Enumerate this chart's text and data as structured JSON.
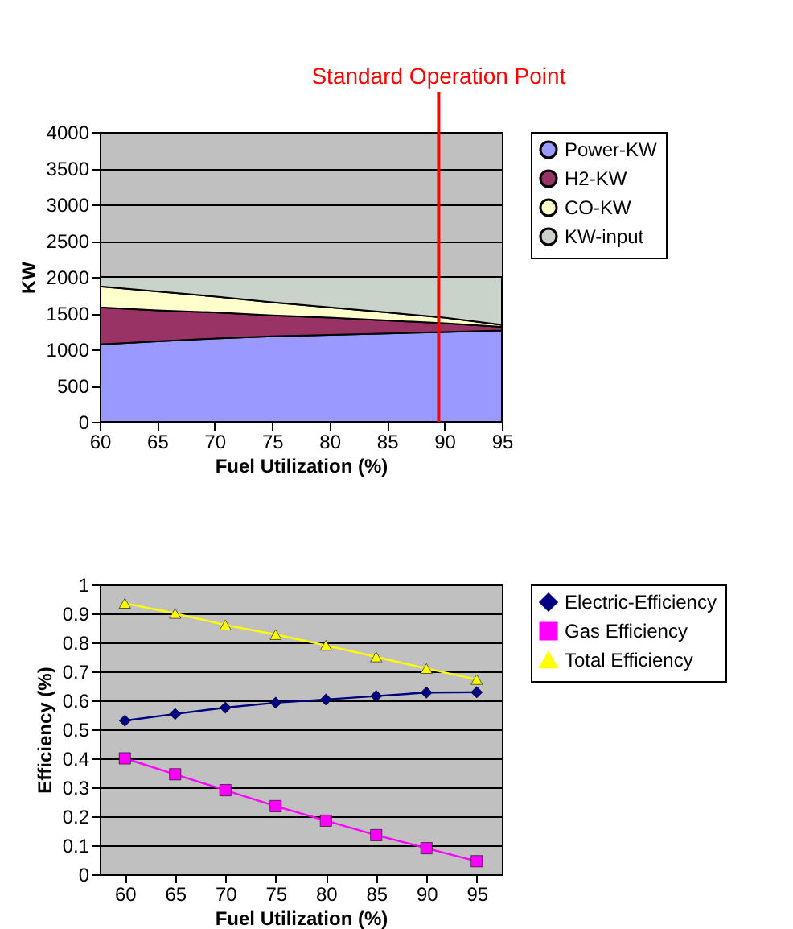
{
  "chart_data": [
    {
      "type": "area",
      "stacked": true,
      "xlabel": "Fuel Utilization (%)",
      "ylabel": "KW",
      "x": [
        60,
        65,
        70,
        75,
        80,
        85,
        90,
        95
      ],
      "series": [
        {
          "name": "Power-KW",
          "color": "#9999ff",
          "values": [
            1070,
            1110,
            1150,
            1180,
            1200,
            1220,
            1240,
            1260
          ]
        },
        {
          "name": "H2-KW",
          "color": "#993366",
          "values": [
            510,
            430,
            360,
            290,
            240,
            180,
            120,
            50
          ]
        },
        {
          "name": "CO-KW",
          "color": "#ffffcc",
          "values": [
            290,
            260,
            220,
            180,
            140,
            110,
            80,
            30
          ]
        },
        {
          "name": "KW-input",
          "color": "#c9d3c9",
          "values": [
            130,
            200,
            270,
            350,
            420,
            490,
            560,
            660
          ]
        }
      ],
      "xlim": [
        60,
        95
      ],
      "xticks": [
        60,
        65,
        70,
        75,
        80,
        85,
        90,
        95
      ],
      "ylim": [
        0,
        4000
      ],
      "yticks": [
        0,
        500,
        1000,
        1500,
        2000,
        2500,
        3000,
        3500,
        4000
      ],
      "ref_lines": [
        {
          "axis": "x",
          "value": 89.5,
          "label": "Standard Operation Point",
          "color": "#ff0000"
        }
      ],
      "grid": "y",
      "legend": "right"
    },
    {
      "type": "line",
      "xlabel": "Fuel Utilization (%)",
      "ylabel": "Efficiency (%)",
      "categories": [
        "60",
        "65",
        "70",
        "75",
        "80",
        "85",
        "90",
        "95"
      ],
      "series": [
        {
          "name": "Electric-Efficiency",
          "color": "#000080",
          "marker": "diamond",
          "values": [
            0.53,
            0.553,
            0.575,
            0.592,
            0.603,
            0.615,
            0.627,
            0.628
          ]
        },
        {
          "name": "Gas Efficiency",
          "color": "#ff00ff",
          "marker": "square",
          "values": [
            0.4,
            0.345,
            0.29,
            0.235,
            0.185,
            0.135,
            0.09,
            0.045
          ]
        },
        {
          "name": "Total Efficiency",
          "color": "#ffff00",
          "marker": "triangle",
          "values": [
            0.935,
            0.9,
            0.86,
            0.827,
            0.79,
            0.75,
            0.71,
            0.672
          ]
        }
      ],
      "ylim": [
        0,
        1
      ],
      "yticks": [
        0,
        0.1,
        0.2,
        0.3,
        0.4,
        0.5,
        0.6,
        0.7,
        0.8,
        0.9,
        1
      ],
      "grid": "y",
      "legend": "right"
    }
  ]
}
